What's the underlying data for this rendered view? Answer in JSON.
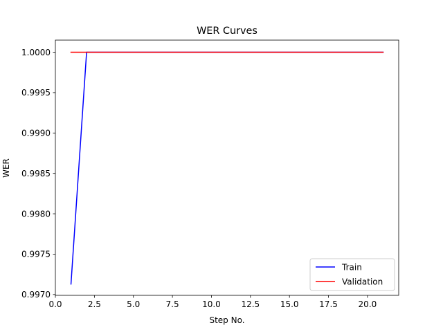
{
  "chart_data": {
    "type": "line",
    "title": "WER Curves",
    "xlabel": "Step No.",
    "ylabel": "WER",
    "xlim": [
      0.0,
      22.0
    ],
    "ylim": [
      0.99699,
      1.00015
    ],
    "xticks": [
      0.0,
      2.5,
      5.0,
      7.5,
      10.0,
      12.5,
      15.0,
      17.5,
      20.0
    ],
    "xtick_labels": [
      "0.0",
      "2.5",
      "5.0",
      "7.5",
      "10.0",
      "12.5",
      "15.0",
      "17.5",
      "20.0"
    ],
    "yticks": [
      0.997,
      0.9975,
      0.998,
      0.9985,
      0.999,
      0.9995,
      1.0
    ],
    "ytick_labels": [
      "0.9970",
      "0.9975",
      "0.9980",
      "0.9985",
      "0.9990",
      "0.9995",
      "1.0000"
    ],
    "grid": false,
    "legend_position": "lower right",
    "series": [
      {
        "name": "Train",
        "color": "#0000ff",
        "x": [
          1,
          2,
          3,
          4,
          5,
          6,
          7,
          8,
          9,
          10,
          11,
          12,
          13,
          14,
          15,
          16,
          17,
          18,
          19,
          20,
          21
        ],
        "y": [
          0.99713,
          1.0,
          1.0,
          1.0,
          1.0,
          1.0,
          1.0,
          1.0,
          1.0,
          1.0,
          1.0,
          1.0,
          1.0,
          1.0,
          1.0,
          1.0,
          1.0,
          1.0,
          1.0,
          1.0,
          1.0
        ]
      },
      {
        "name": "Validation",
        "color": "#ff0000",
        "x": [
          1,
          2,
          3,
          4,
          5,
          6,
          7,
          8,
          9,
          10,
          11,
          12,
          13,
          14,
          15,
          16,
          17,
          18,
          19,
          20,
          21
        ],
        "y": [
          1.0,
          1.0,
          1.0,
          1.0,
          1.0,
          1.0,
          1.0,
          1.0,
          1.0,
          1.0,
          1.0,
          1.0,
          1.0,
          1.0,
          1.0,
          1.0,
          1.0,
          1.0,
          1.0,
          1.0,
          1.0
        ]
      }
    ]
  }
}
